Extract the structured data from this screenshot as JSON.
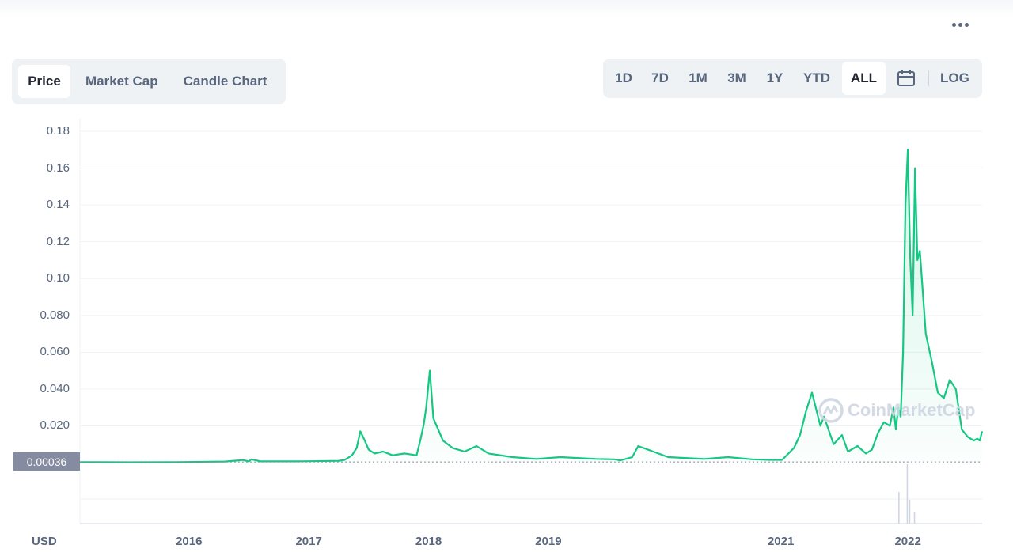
{
  "header": {
    "more_icon": "more-horizontal-icon"
  },
  "tabs": [
    {
      "label": "Price",
      "active": true
    },
    {
      "label": "Market Cap",
      "active": false
    },
    {
      "label": "Candle Chart",
      "active": false
    }
  ],
  "ranges": [
    {
      "label": "1D",
      "active": false
    },
    {
      "label": "7D",
      "active": false
    },
    {
      "label": "1M",
      "active": false
    },
    {
      "label": "3M",
      "active": false
    },
    {
      "label": "1Y",
      "active": false
    },
    {
      "label": "YTD",
      "active": false
    },
    {
      "label": "ALL",
      "active": true
    }
  ],
  "calendar_icon": "calendar-icon",
  "log_label": "LOG",
  "current_price_label": "0.00036",
  "currency_label": "USD",
  "watermark": "CoinMarketCap",
  "colors": {
    "line": "#16c784",
    "fill": "#16c784",
    "grid": "#eff2f5",
    "text": "#58667e",
    "price_tag": "#858ca2"
  },
  "chart_data": {
    "type": "area",
    "ylim": [
      0,
      0.18
    ],
    "y_ticks": [
      "0.18",
      "0.16",
      "0.14",
      "0.12",
      "0.10",
      "0.080",
      "0.060",
      "0.040",
      "0.020"
    ],
    "y_tick_values": [
      0.18,
      0.16,
      0.14,
      0.12,
      0.1,
      0.08,
      0.06,
      0.04,
      0.02
    ],
    "x_ticks": [
      "2016",
      "2017",
      "2018",
      "2019",
      "2021",
      "2022"
    ],
    "x_tick_values": [
      2016.0,
      2017.0,
      2018.0,
      2019.0,
      2020.94,
      2022.0
    ],
    "xlim": [
      2015.09,
      2022.62
    ],
    "reference_price": 0.00036,
    "grid": true,
    "series": [
      {
        "x": [
          2015.09,
          2015.5,
          2015.9,
          2016.3,
          2016.45,
          2016.5,
          2016.52,
          2016.6,
          2016.9,
          2017.25,
          2017.3,
          2017.36,
          2017.4,
          2017.43,
          2017.46,
          2017.5,
          2017.55,
          2017.62,
          2017.7,
          2017.8,
          2017.9,
          2017.93,
          2017.96,
          2017.98,
          2018.01,
          2018.04,
          2018.08,
          2018.12,
          2018.2,
          2018.3,
          2018.4,
          2018.5,
          2018.7,
          2018.9,
          2019.1,
          2019.4,
          2019.55,
          2019.6,
          2019.7,
          2019.75,
          2020.0,
          2020.3,
          2020.5,
          2020.7,
          2020.85,
          2020.95,
          2021.05,
          2021.1,
          2021.15,
          2021.2,
          2021.27,
          2021.3,
          2021.38,
          2021.45,
          2021.5,
          2021.58,
          2021.65,
          2021.7,
          2021.75,
          2021.8,
          2021.85,
          2021.88,
          2021.9,
          2021.92,
          2021.94,
          2021.96,
          2021.98,
          2022.0,
          2022.02,
          2022.04,
          2022.06,
          2022.08,
          2022.1,
          2022.15,
          2022.2,
          2022.25,
          2022.3,
          2022.35,
          2022.4,
          2022.45,
          2022.5,
          2022.55,
          2022.58,
          2022.6,
          2022.62
        ],
        "values": [
          0.0003,
          0.0002,
          0.0003,
          0.0006,
          0.0014,
          0.0007,
          0.0018,
          0.0007,
          0.0007,
          0.001,
          0.0015,
          0.004,
          0.008,
          0.017,
          0.013,
          0.007,
          0.005,
          0.006,
          0.004,
          0.005,
          0.004,
          0.012,
          0.021,
          0.03,
          0.05,
          0.024,
          0.018,
          0.012,
          0.008,
          0.006,
          0.009,
          0.005,
          0.003,
          0.002,
          0.003,
          0.002,
          0.0018,
          0.0012,
          0.003,
          0.009,
          0.003,
          0.002,
          0.003,
          0.0018,
          0.0015,
          0.0015,
          0.008,
          0.015,
          0.028,
          0.038,
          0.02,
          0.025,
          0.01,
          0.015,
          0.006,
          0.009,
          0.005,
          0.007,
          0.016,
          0.022,
          0.02,
          0.03,
          0.018,
          0.03,
          0.025,
          0.06,
          0.14,
          0.17,
          0.11,
          0.08,
          0.16,
          0.11,
          0.115,
          0.07,
          0.055,
          0.038,
          0.035,
          0.045,
          0.04,
          0.018,
          0.014,
          0.012,
          0.013,
          0.012,
          0.017
        ]
      }
    ]
  }
}
